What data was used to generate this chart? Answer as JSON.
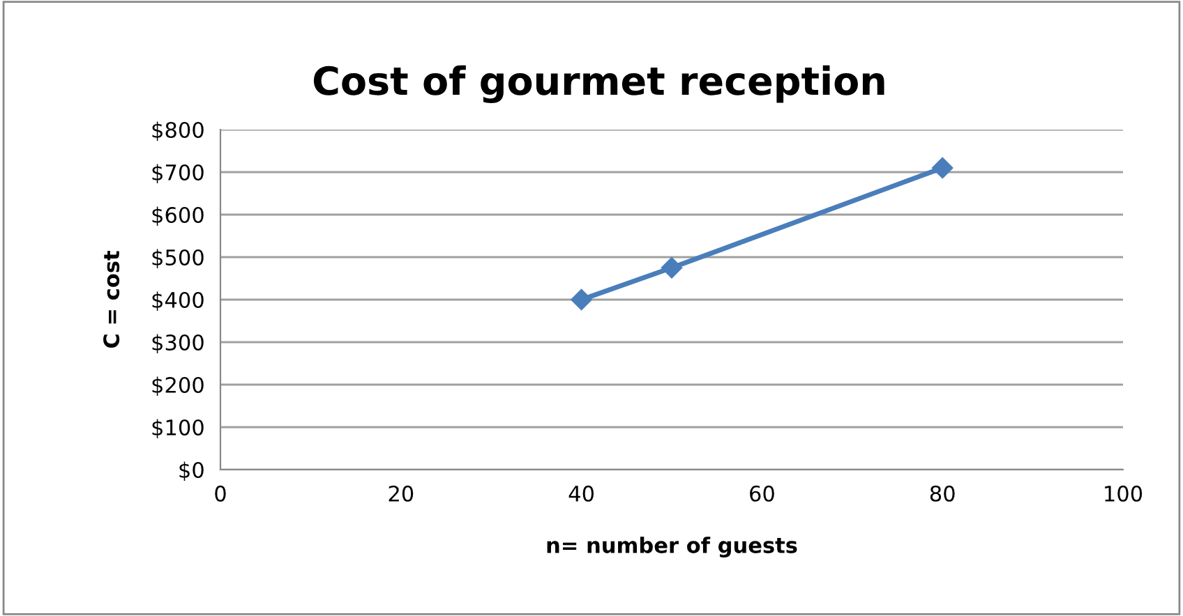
{
  "chart_data": {
    "type": "line",
    "title": "Cost of gourmet reception",
    "xlabel": "n= number of guests",
    "ylabel": "C = cost",
    "series": [
      {
        "color": "#4a7ebb",
        "x": [
          40,
          50,
          80
        ],
        "values": [
          400,
          475,
          710
        ]
      }
    ],
    "marker": "diamond",
    "line_style": "solid",
    "xlim": [
      0,
      100
    ],
    "xticks": [
      0,
      20,
      40,
      60,
      80,
      100
    ],
    "ylim": [
      0,
      800
    ],
    "yticks": [
      {
        "value": 0,
        "label": "$0"
      },
      {
        "value": 100,
        "label": "$100"
      },
      {
        "value": 200,
        "label": "$200"
      },
      {
        "value": 300,
        "label": "$300"
      },
      {
        "value": 400,
        "label": "$400"
      },
      {
        "value": 500,
        "label": "$500"
      },
      {
        "value": 600,
        "label": "$600"
      },
      {
        "value": 700,
        "label": "$700"
      },
      {
        "value": 800,
        "label": "$800"
      }
    ],
    "grid": "y"
  }
}
